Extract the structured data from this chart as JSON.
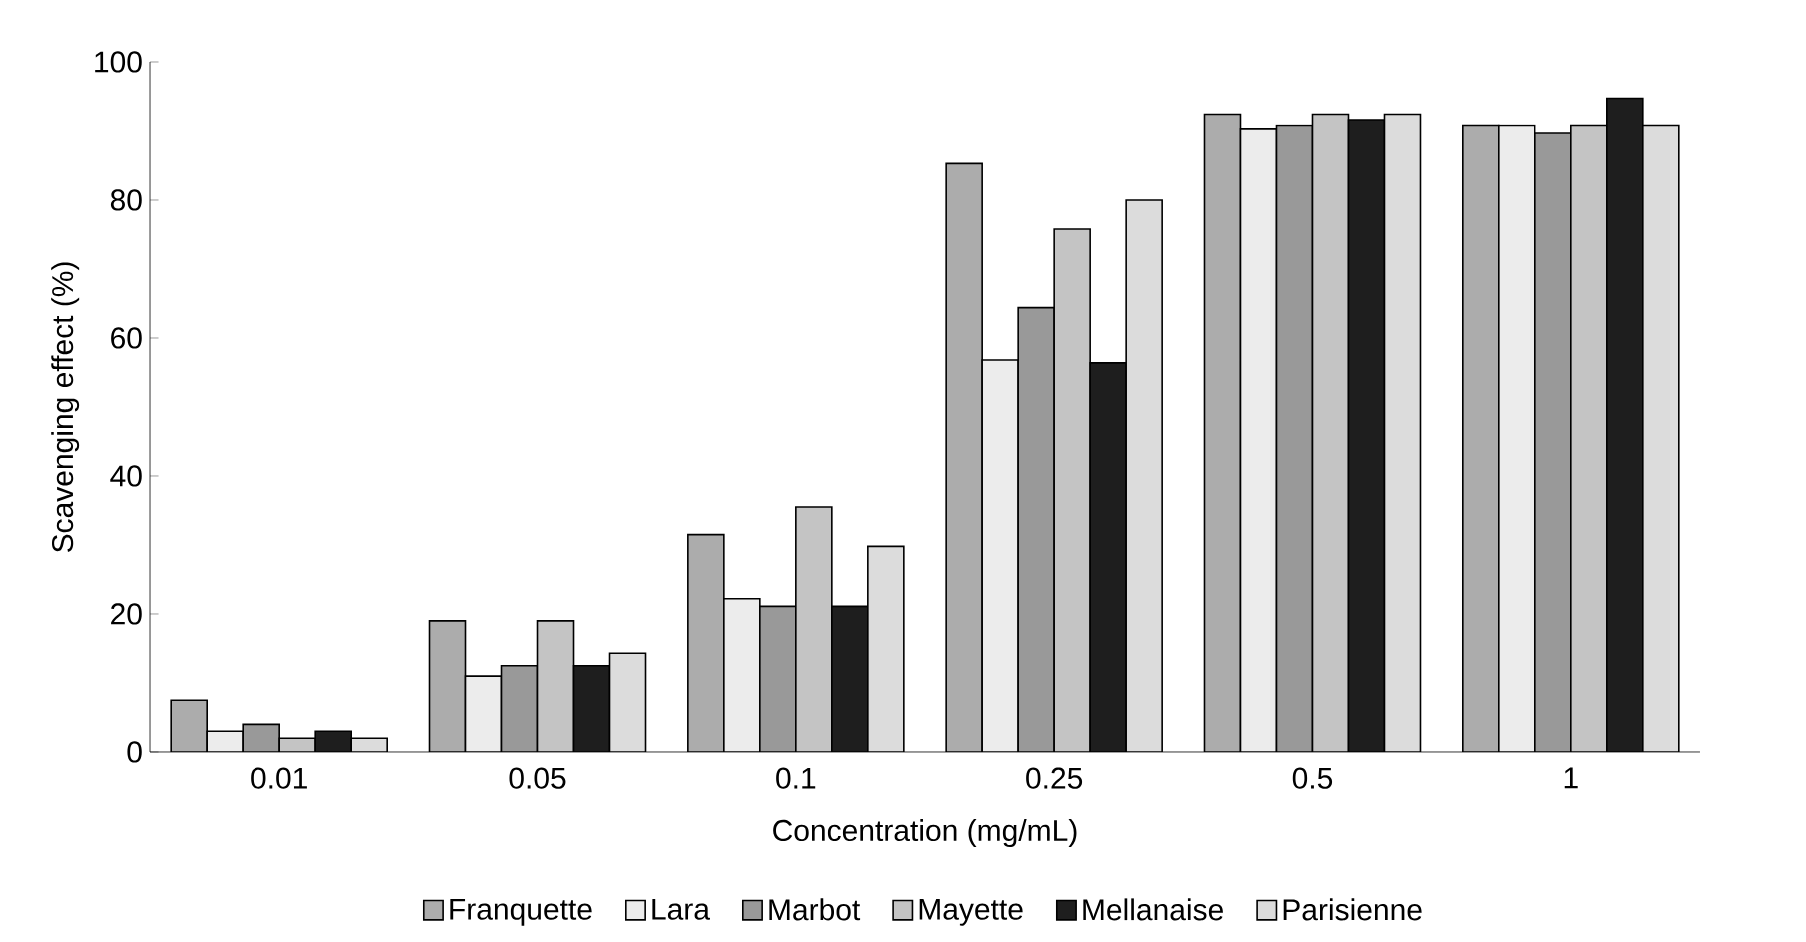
{
  "chart_data": {
    "type": "bar",
    "xlabel": "Concentration (mg/mL)",
    "ylabel": "Scavenging effect (%)",
    "categories": [
      "0.01",
      "0.05",
      "0.1",
      "0.25",
      "0.5",
      "1"
    ],
    "ylim": [
      0,
      100
    ],
    "yticks": [
      0,
      20,
      40,
      60,
      80,
      100
    ],
    "grid": false,
    "legend": "bottom",
    "series": [
      {
        "name": "Franquette",
        "color": "#acacac",
        "values": [
          7.5,
          19,
          31.5,
          85.3,
          92.4,
          90.8
        ]
      },
      {
        "name": "Lara",
        "color": "#ececec",
        "values": [
          3,
          11,
          22.2,
          56.8,
          90.3,
          90.8
        ]
      },
      {
        "name": "Marbot",
        "color": "#999999",
        "values": [
          4,
          12.5,
          21.1,
          64.4,
          90.8,
          89.7
        ]
      },
      {
        "name": "Mayette",
        "color": "#c4c4c4",
        "values": [
          2,
          19,
          35.5,
          75.8,
          92.4,
          90.8
        ]
      },
      {
        "name": "Mellanaise",
        "color": "#1e1e1e",
        "values": [
          3,
          12.5,
          21.1,
          56.4,
          91.6,
          94.7
        ]
      },
      {
        "name": "Parisienne",
        "color": "#dcdcdc",
        "values": [
          2,
          14.3,
          29.8,
          80,
          92.4,
          90.8
        ]
      }
    ]
  }
}
